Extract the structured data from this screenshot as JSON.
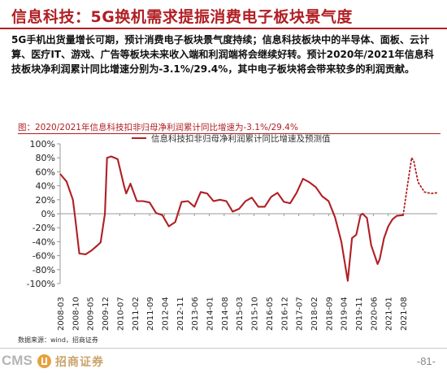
{
  "slide": {
    "title": "信息科技：5G换机需求提振消费电子板块景气度",
    "summary": "5G手机出货量增长可期，预计消费电子板块景气度持续；信息科技板块中的半导体、面板、云计算、医疗IT、游戏、广告等板块未来收入端和利润端将会继续好转。预计2020年/2021年信息科技板块净利润累计同比增速分别为-3.1%/29.4%，其中电子板块将会带来较多的利润贡献。",
    "chart_caption": "图：2020/2021年信息科技扣非归母净利润累计同比增速为-3.1%/29.4%",
    "source": "数据来源：wind，招商证券",
    "logo_text": "CMS",
    "logo_cn": "招商证券",
    "page_number": "-81-"
  },
  "colors": {
    "brand": "#b01f24",
    "series": "#b01f24",
    "axis": "#999999"
  },
  "chart_data": {
    "type": "line",
    "legend": "信息科技扣非归母净利润累计同比增速及预测值",
    "legend_position": "top",
    "ylim": [
      -100,
      100
    ],
    "yticks": [
      100,
      80,
      60,
      40,
      20,
      0,
      -20,
      -40,
      -60,
      -80,
      -100
    ],
    "ytick_labels": [
      "100%",
      "80%",
      "60%",
      "40%",
      "20%",
      "0%",
      "-20%",
      "-40%",
      "-60%",
      "-80%",
      "-100%"
    ],
    "xtick_labels": [
      "2008-03",
      "2008-10",
      "2009-05",
      "2009-12",
      "2010-07",
      "2011-02",
      "2011-09",
      "2012-04",
      "2012-11",
      "2013-06",
      "2014-01",
      "2014-08",
      "2015-03",
      "2015-10",
      "2016-05",
      "2016-12",
      "2017-07",
      "2018-02",
      "2018-09",
      "2019-04",
      "2019-11",
      "2020-06",
      "2021-01",
      "2021-08"
    ],
    "grid": false,
    "series": [
      {
        "style": "solid",
        "points": [
          [
            "2008-03",
            57
          ],
          [
            "2008-06",
            46
          ],
          [
            "2008-09",
            20
          ],
          [
            "2008-10",
            -5
          ],
          [
            "2008-12",
            -57
          ],
          [
            "2009-03",
            -58
          ],
          [
            "2009-06",
            -52
          ],
          [
            "2009-09",
            -44
          ],
          [
            "2009-10",
            -41
          ],
          [
            "2009-12",
            0
          ],
          [
            "2010-01",
            80
          ],
          [
            "2010-03",
            82
          ],
          [
            "2010-06",
            78
          ],
          [
            "2010-09",
            40
          ],
          [
            "2010-10",
            29
          ],
          [
            "2010-12",
            43
          ],
          [
            "2011-03",
            18
          ],
          [
            "2011-06",
            18
          ],
          [
            "2011-09",
            16
          ],
          [
            "2011-12",
            1
          ],
          [
            "2012-03",
            -2
          ],
          [
            "2012-06",
            -18
          ],
          [
            "2012-09",
            -12
          ],
          [
            "2012-12",
            17
          ],
          [
            "2013-03",
            18
          ],
          [
            "2013-06",
            10
          ],
          [
            "2013-09",
            31
          ],
          [
            "2013-12",
            29
          ],
          [
            "2014-03",
            18
          ],
          [
            "2014-06",
            20
          ],
          [
            "2014-09",
            18
          ],
          [
            "2014-12",
            3
          ],
          [
            "2015-03",
            7
          ],
          [
            "2015-06",
            18
          ],
          [
            "2015-09",
            23
          ],
          [
            "2015-12",
            10
          ],
          [
            "2016-03",
            10
          ],
          [
            "2016-06",
            24
          ],
          [
            "2016-09",
            30
          ],
          [
            "2016-12",
            17
          ],
          [
            "2017-03",
            15
          ],
          [
            "2017-06",
            30
          ],
          [
            "2017-09",
            50
          ],
          [
            "2017-12",
            45
          ],
          [
            "2018-03",
            38
          ],
          [
            "2018-06",
            25
          ],
          [
            "2018-09",
            18
          ],
          [
            "2018-12",
            -5
          ],
          [
            "2019-03",
            -40
          ],
          [
            "2019-06",
            -96
          ],
          [
            "2019-08",
            -35
          ],
          [
            "2019-10",
            -30
          ],
          [
            "2019-12",
            -2
          ],
          [
            "2020-01",
            0
          ],
          [
            "2020-03",
            -6
          ],
          [
            "2020-05",
            -45
          ],
          [
            "2020-08",
            -72
          ],
          [
            "2020-09",
            -65
          ],
          [
            "2020-11",
            -35
          ],
          [
            "2021-01",
            -18
          ],
          [
            "2021-03",
            -8
          ],
          [
            "2021-05",
            -3
          ],
          [
            "2021-08",
            -2
          ]
        ]
      },
      {
        "style": "dotted",
        "points": [
          [
            "2021-08",
            -2
          ],
          [
            "2021-10",
            40
          ],
          [
            "2021-12",
            80
          ],
          [
            "2022-01",
            75
          ],
          [
            "2022-03",
            45
          ],
          [
            "2022-06",
            31
          ],
          [
            "2022-09",
            29
          ],
          [
            "2022-12",
            30
          ]
        ]
      }
    ]
  }
}
